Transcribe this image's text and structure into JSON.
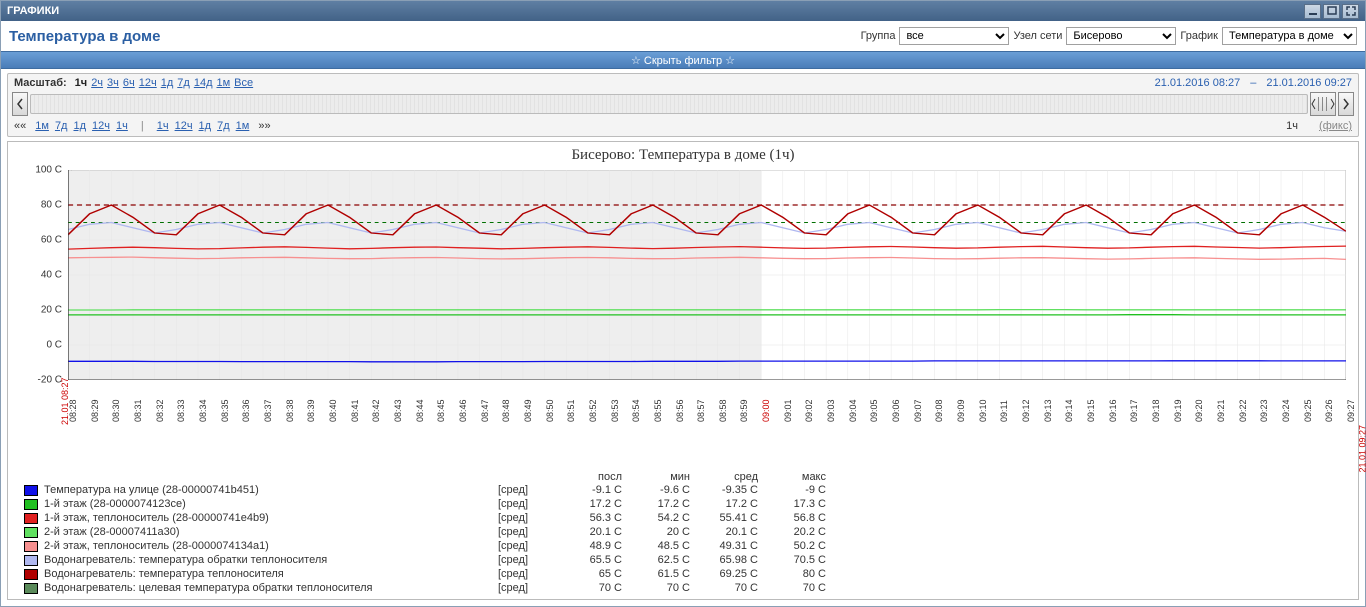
{
  "window_title": "ГРАФИКИ",
  "page_title": "Температура в доме",
  "filter_labels": {
    "group": "Группа",
    "node": "Узел сети",
    "chart": "График"
  },
  "filters": {
    "group": {
      "selected": "все"
    },
    "node": {
      "selected": "Бисерово"
    },
    "chart": {
      "selected": "Температура в доме"
    }
  },
  "filter_toggle": "☆ Скрыть фильтр ☆",
  "scale": {
    "label": "Масштаб:",
    "options": [
      "1ч",
      "2ч",
      "3ч",
      "6ч",
      "12ч",
      "1д",
      "7д",
      "14д",
      "1м",
      "Все"
    ],
    "current": "1ч",
    "date_from": "21.01.2016 08:27",
    "date_sep": "–",
    "date_to": "21.01.2016 09:27"
  },
  "nav": {
    "back_prefix": "««",
    "back": [
      "1м",
      "7д",
      "1д",
      "12ч",
      "1ч"
    ],
    "fwd": [
      "1ч",
      "12ч",
      "1д",
      "7д",
      "1м"
    ],
    "fwd_suffix": "»»",
    "sep": "|",
    "right_label": "1ч",
    "fix": "(фикс)"
  },
  "chart": {
    "title": "Бисерово: Температура в доме (1ч)",
    "ylim": [
      -20,
      100
    ],
    "ytick_step": 20,
    "yunit": " C",
    "xlabels": [
      "08:28",
      "08:29",
      "08:30",
      "08:31",
      "08:32",
      "08:33",
      "08:34",
      "08:35",
      "08:36",
      "08:37",
      "08:38",
      "08:39",
      "08:40",
      "08:41",
      "08:42",
      "08:43",
      "08:44",
      "08:45",
      "08:46",
      "08:47",
      "08:48",
      "08:49",
      "08:50",
      "08:51",
      "08:52",
      "08:53",
      "08:54",
      "08:55",
      "08:56",
      "08:57",
      "08:58",
      "08:59",
      "09:00",
      "09:01",
      "09:02",
      "09:03",
      "09:04",
      "09:05",
      "09:06",
      "09:07",
      "09:08",
      "09:09",
      "09:10",
      "09:11",
      "09:12",
      "09:13",
      "09:14",
      "09:15",
      "09:16",
      "09:17",
      "09:18",
      "09:19",
      "09:20",
      "09:21",
      "09:22",
      "09:23",
      "09:24",
      "09:25",
      "09:26",
      "09:27"
    ],
    "xred_index": 32,
    "startdate_label": "21.01 08:27",
    "enddate_label": "21.01 09:27",
    "shade_until_index": 32,
    "bg_shade": "#eeeeee",
    "grid_color": "#e6e6e6",
    "target_line_color": "#8b0000",
    "target_value": 80,
    "green_ref_color": "#007000",
    "green_ref_value": 70,
    "series": [
      {
        "id": "outside",
        "name": "Температура на улице (28-00000741b451)",
        "type": "[сред]",
        "posl": "-9.1 C",
        "min": "-9.6 C",
        "sred": "-9.35 C",
        "maks": "-9 C",
        "color": "#1010e8",
        "values": [
          -9.3,
          -9.3,
          -9.3,
          -9.3,
          -9.4,
          -9.4,
          -9.4,
          -9.4,
          -9.5,
          -9.5,
          -9.5,
          -9.5,
          -9.5,
          -9.5,
          -9.6,
          -9.6,
          -9.6,
          -9.6,
          -9.5,
          -9.5,
          -9.5,
          -9.5,
          -9.4,
          -9.4,
          -9.4,
          -9.4,
          -9.4,
          -9.3,
          -9.3,
          -9.3,
          -9.3,
          -9.2,
          -9.2,
          -9.2,
          -9.2,
          -9.2,
          -9.2,
          -9.2,
          -9.2,
          -9.2,
          -9.1,
          -9.1,
          -9.1,
          -9.1,
          -9.1,
          -9.1,
          -9.1,
          -9.1,
          -9.1,
          -9.1,
          -9.1,
          -9.0,
          -9.0,
          -9.0,
          -9.0,
          -9.0,
          -9.1,
          -9.1,
          -9.1,
          -9.1
        ]
      },
      {
        "id": "fl1",
        "name": "1-й этаж (28-0000074123ce)",
        "type": "[сред]",
        "posl": "17.2 C",
        "min": "17.2 C",
        "sred": "17.2 C",
        "maks": "17.3 C",
        "color": "#20c020",
        "values": [
          17.2,
          17.2,
          17.2,
          17.2,
          17.2,
          17.2,
          17.2,
          17.2,
          17.2,
          17.2,
          17.2,
          17.2,
          17.2,
          17.2,
          17.2,
          17.2,
          17.2,
          17.2,
          17.2,
          17.2,
          17.2,
          17.2,
          17.2,
          17.2,
          17.2,
          17.2,
          17.2,
          17.2,
          17.2,
          17.2,
          17.2,
          17.2,
          17.2,
          17.2,
          17.2,
          17.2,
          17.2,
          17.2,
          17.2,
          17.2,
          17.2,
          17.2,
          17.2,
          17.2,
          17.2,
          17.2,
          17.2,
          17.2,
          17.2,
          17.3,
          17.3,
          17.3,
          17.2,
          17.2,
          17.2,
          17.2,
          17.2,
          17.2,
          17.2,
          17.2
        ]
      },
      {
        "id": "fl1-h",
        "name": "1-й этаж, теплоноситель (28-00000741e4b9)",
        "type": "[сред]",
        "posl": "56.3 C",
        "min": "54.2 C",
        "sred": "55.41 C",
        "maks": "56.8 C",
        "color": "#e02020",
        "values": [
          54.8,
          55.2,
          55.6,
          55.9,
          55.6,
          55.2,
          54.9,
          55.1,
          55.5,
          55.9,
          56.1,
          55.8,
          55.4,
          55.0,
          55.2,
          55.6,
          55.9,
          56.0,
          55.6,
          55.3,
          55.0,
          55.2,
          55.6,
          55.9,
          56.1,
          55.8,
          55.4,
          55.1,
          55.3,
          55.7,
          56.0,
          56.2,
          55.9,
          55.5,
          55.2,
          55.4,
          55.8,
          56.1,
          56.3,
          56.0,
          55.6,
          55.3,
          55.5,
          55.9,
          56.2,
          56.4,
          56.0,
          55.6,
          55.3,
          55.5,
          55.9,
          56.2,
          56.4,
          56.0,
          55.7,
          55.4,
          55.6,
          56.0,
          56.3,
          56.5
        ]
      },
      {
        "id": "fl2",
        "name": "2-й этаж (28-00007411a30)",
        "type": "[сред]",
        "posl": "20.1 C",
        "min": "20 C",
        "sred": "20.1 C",
        "maks": "20.2 C",
        "color": "#60e060",
        "values": [
          20.0,
          20.0,
          20.0,
          20.1,
          20.1,
          20.1,
          20.1,
          20.1,
          20.1,
          20.1,
          20.1,
          20.1,
          20.1,
          20.1,
          20.1,
          20.1,
          20.1,
          20.1,
          20.1,
          20.1,
          20.1,
          20.1,
          20.1,
          20.1,
          20.1,
          20.1,
          20.1,
          20.1,
          20.1,
          20.1,
          20.1,
          20.1,
          20.1,
          20.1,
          20.1,
          20.1,
          20.1,
          20.1,
          20.1,
          20.1,
          20.1,
          20.1,
          20.1,
          20.2,
          20.2,
          20.2,
          20.2,
          20.1,
          20.1,
          20.1,
          20.1,
          20.1,
          20.1,
          20.1,
          20.1,
          20.1,
          20.1,
          20.1,
          20.1,
          20.1
        ]
      },
      {
        "id": "fl2-h",
        "name": "2-й этаж, теплоноситель (28-0000074134a1)",
        "type": "[сред]",
        "posl": "48.9 C",
        "min": "48.5 C",
        "sred": "49.31 C",
        "maks": "50.2 C",
        "color": "#f79090",
        "values": [
          49.8,
          50.0,
          50.1,
          50.2,
          49.9,
          49.6,
          49.4,
          49.5,
          49.8,
          50.0,
          50.1,
          49.8,
          49.5,
          49.3,
          49.4,
          49.7,
          49.9,
          50.0,
          49.7,
          49.4,
          49.2,
          49.3,
          49.6,
          49.9,
          50.0,
          49.8,
          49.5,
          49.3,
          49.4,
          49.7,
          49.9,
          50.1,
          49.8,
          49.5,
          49.3,
          49.4,
          49.7,
          49.9,
          50.0,
          49.7,
          49.4,
          49.2,
          49.3,
          49.6,
          49.8,
          49.9,
          49.6,
          49.3,
          49.1,
          49.2,
          49.5,
          49.7,
          49.8,
          49.5,
          49.2,
          49.0,
          49.1,
          49.3,
          49.5,
          48.9
        ]
      },
      {
        "id": "wh-return",
        "name": "Водонагреватель: температура обратки теплоносителя",
        "type": "[сред]",
        "posl": "65.5 C",
        "min": "62.5 C",
        "sred": "65.98 C",
        "maks": "70.5 C",
        "color": "#b0b8f0",
        "values": [
          66,
          69,
          70,
          67,
          64,
          66,
          69,
          70,
          67,
          64,
          66,
          69,
          70,
          67,
          64,
          66,
          69,
          70,
          67,
          64,
          66,
          69,
          70,
          67,
          64,
          66,
          69,
          70,
          67,
          64,
          66,
          69,
          70,
          67,
          64,
          66,
          69,
          70,
          67,
          64,
          66,
          69,
          70,
          67,
          64,
          66,
          69,
          70,
          67,
          64,
          66,
          69,
          70,
          67,
          64,
          66,
          69,
          70,
          67,
          65
        ]
      },
      {
        "id": "wh-supply",
        "name": "Водонагреватель: температура теплоносителя",
        "type": "[сред]",
        "posl": "65 C",
        "min": "61.5 C",
        "sred": "69.25 C",
        "maks": "80 C",
        "color": "#b00000",
        "values": [
          63,
          75,
          80,
          73,
          64,
          63,
          75,
          80,
          73,
          64,
          63,
          75,
          80,
          73,
          64,
          63,
          75,
          80,
          73,
          64,
          63,
          75,
          80,
          73,
          64,
          63,
          75,
          80,
          73,
          64,
          63,
          75,
          80,
          73,
          64,
          63,
          75,
          80,
          73,
          64,
          63,
          75,
          80,
          73,
          64,
          63,
          75,
          80,
          73,
          64,
          63,
          75,
          80,
          73,
          64,
          63,
          75,
          80,
          73,
          65
        ]
      },
      {
        "id": "wh-target",
        "name": "Водонагреватель: целевая температура обратки теплоносителя",
        "type": "[сред]",
        "posl": "70 C",
        "min": "70 C",
        "sred": "70 C",
        "maks": "70 C",
        "color": "#5a8a5a",
        "values": []
      }
    ],
    "legend_headers": {
      "name": "",
      "type": "",
      "posl": "посл",
      "min": "мин",
      "sred": "сред",
      "maks": "макс"
    }
  }
}
